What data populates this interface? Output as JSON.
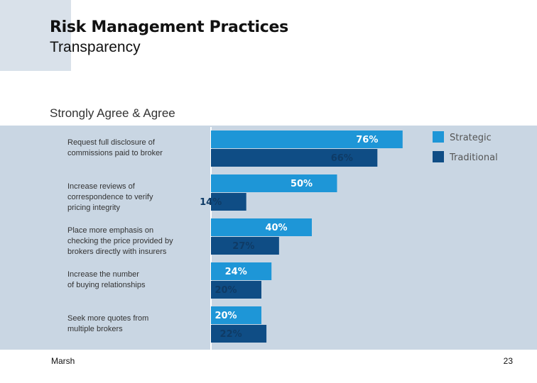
{
  "header": {
    "title": "Risk Management Practices",
    "subtitle": "Transparency"
  },
  "chart_heading": "Strongly Agree & Agree",
  "footer": {
    "source": "Marsh",
    "page_number": "23"
  },
  "colors": {
    "panel": "#c9d6e3",
    "strategic": "#1e96d7",
    "traditional": "#0f4d85"
  },
  "chart_data": {
    "type": "bar",
    "orientation": "horizontal",
    "categories": [
      [
        "Request full disclosure of",
        "commissions paid to broker"
      ],
      [
        "Increase reviews of",
        "correspondence to verify",
        "pricing integrity"
      ],
      [
        "Place more emphasis on",
        "checking the price provided by",
        "brokers directly with insurers"
      ],
      [
        "Increase the number",
        "of buying relationships"
      ],
      [
        "Seek more quotes from",
        "multiple brokers"
      ]
    ],
    "series": [
      {
        "name": "Strategic",
        "values": [
          76,
          50,
          40,
          24,
          20
        ]
      },
      {
        "name": "Traditional",
        "values": [
          66,
          14,
          27,
          20,
          22
        ]
      }
    ],
    "value_suffix": "%",
    "xlim": [
      0,
      100
    ],
    "legend_position": "top-right"
  }
}
